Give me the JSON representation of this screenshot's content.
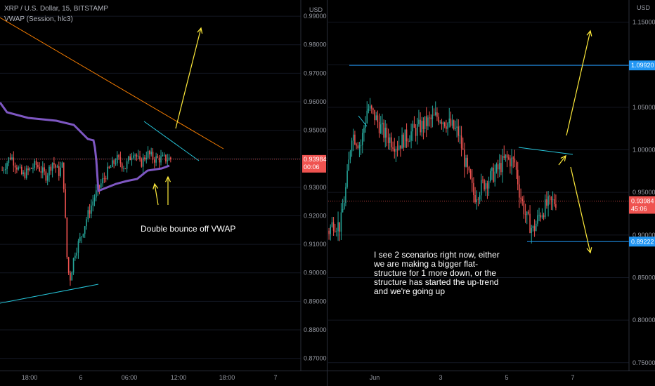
{
  "header": {
    "symbol_line": "XRP / U.S. Dollar, 15, BITSTAMP",
    "indicator_line": "VWAP (Session, hlc3)"
  },
  "chart_data": [
    {
      "type": "candlestick",
      "panel": "left",
      "currency_label": "USD",
      "y_ticks": [
        "0.99000",
        "0.98000",
        "0.97000",
        "0.96000",
        "0.95000",
        "0.94000",
        "0.93000",
        "0.92000",
        "0.91000",
        "0.90000",
        "0.89000",
        "0.88000",
        "0.87000"
      ],
      "ylim": [
        0.864,
        0.9915
      ],
      "x_ticks": [
        "18:00",
        "6",
        "06:00",
        "12:00",
        "18:00",
        "7"
      ],
      "last_price": "0.93984",
      "countdown": "00:06",
      "annotation": "Double bounce off VWAP",
      "colors": {
        "up": "#26a69a",
        "down": "#ef5350",
        "vwap": "#7e57c2",
        "trendline": "#f57c00",
        "arrow": "#ffeb3b",
        "support": "#26c6da"
      }
    },
    {
      "type": "candlestick",
      "panel": "right",
      "currency_label": "USD",
      "y_ticks": [
        "1.15000",
        "1.10000",
        "1.05000",
        "1.00000",
        "0.95000",
        "0.90000",
        "0.85000",
        "0.80000",
        "0.75000"
      ],
      "ylim": [
        0.735,
        1.162
      ],
      "x_ticks": [
        "Jun",
        "3",
        "5",
        "7"
      ],
      "last_price": "0.93984",
      "countdown": "45:06",
      "resistance_level": "1.09920",
      "support_level": "0.89222",
      "annotation": "I see 2 scenarios right now, either we are making a bigger flat-structure for 1 more down, or the structure has started the up-trend and we're going up",
      "colors": {
        "up": "#26a69a",
        "down": "#ef5350",
        "level": "#2196f3",
        "arrow": "#ffeb3b",
        "structure": "#26c6da"
      }
    }
  ]
}
